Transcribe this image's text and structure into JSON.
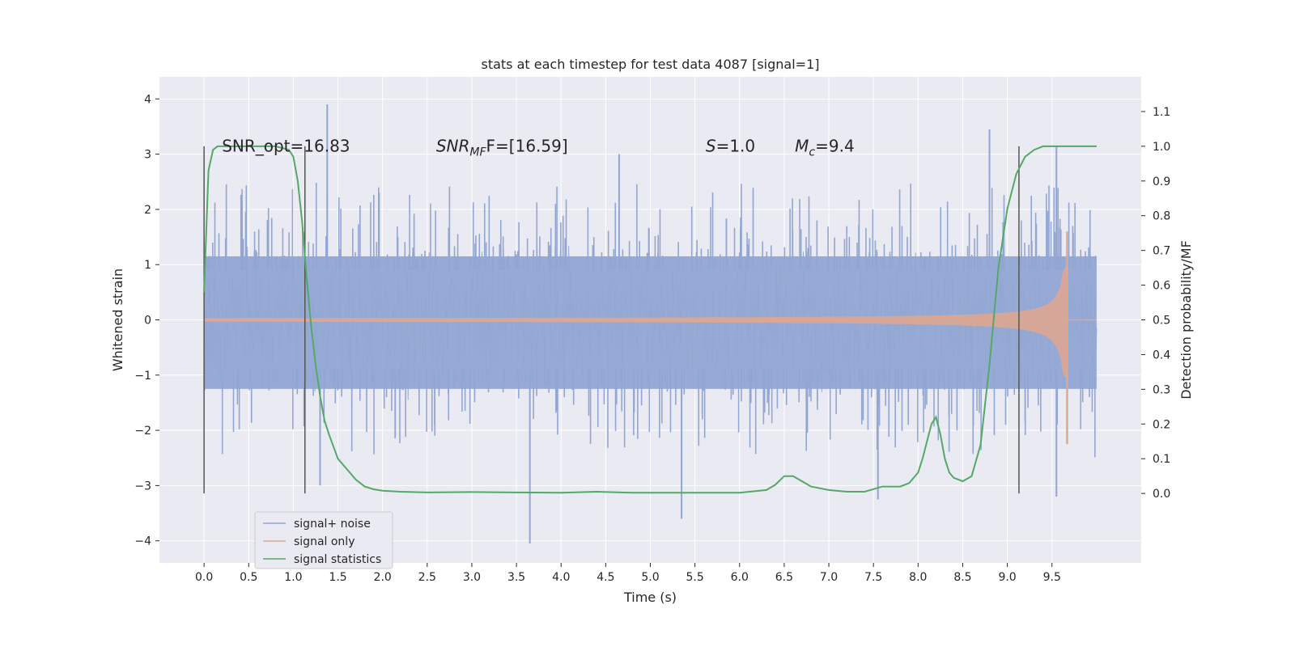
{
  "chart_data": {
    "type": "line",
    "title": "stats at each timestep for test data 4087 [signal=1]",
    "xlabel": "Time (s)",
    "ylabel": "Whitened strain",
    "ylabel_right": "Detection probability/MF",
    "xlim": [
      -0.5,
      10.5
    ],
    "ylim": [
      -4.4,
      4.4
    ],
    "ylim_right": [
      -0.2,
      1.2
    ],
    "xticks": [
      0.0,
      0.5,
      1.0,
      1.5,
      2.0,
      2.5,
      3.0,
      3.5,
      4.0,
      4.5,
      5.0,
      5.5,
      6.0,
      6.5,
      7.0,
      7.5,
      8.0,
      8.5,
      9.0,
      9.5
    ],
    "xtick_labels": [
      "0.0",
      "0.5",
      "1.0",
      "1.5",
      "2.0",
      "2.5",
      "3.0",
      "3.5",
      "4.0",
      "4.5",
      "5.0",
      "5.5",
      "6.0",
      "6.5",
      "7.0",
      "7.5",
      "8.0",
      "8.5",
      "9.0",
      "9.5"
    ],
    "yticks": [
      -4,
      -3,
      -2,
      -1,
      0,
      1,
      2,
      3,
      4
    ],
    "ytick_labels": [
      "−4",
      "−3",
      "−2",
      "−1",
      "0",
      "1",
      "2",
      "3",
      "4"
    ],
    "yticks_right": [
      0.0,
      0.1,
      0.2,
      0.3,
      0.4,
      0.5,
      0.6,
      0.7,
      0.8,
      0.9,
      1.0,
      1.1
    ],
    "ytick_labels_right": [
      "0.0",
      "0.1",
      "0.2",
      "0.3",
      "0.4",
      "0.5",
      "0.6",
      "0.7",
      "0.8",
      "0.9",
      "1.0",
      "1.1"
    ],
    "grid": true,
    "legend_position": "lower-left",
    "annotations": {
      "snr_opt": "SNR_opt=16.83",
      "snr_mf_name": "SNR",
      "snr_mf_sub": "MF",
      "snr_mf_value": "F=[16.59]",
      "s_name": "S",
      "s_value": "=1.0",
      "mc_name": "M",
      "mc_sub": "c",
      "mc_value": "=9.4"
    },
    "vertical_lines_x": [
      0.0,
      1.13,
      9.13
    ],
    "series": [
      {
        "name": "signal+ noise",
        "color": "#92a6d3",
        "axis": "left",
        "x_range": [
          0.0,
          10.0
        ],
        "envelope_peaks": [
          {
            "x": 1.38,
            "y": 3.9
          },
          {
            "x": 4.65,
            "y": 3.0
          },
          {
            "x": 8.8,
            "y": 3.45
          },
          {
            "x": 9.55,
            "y": 3.15
          },
          {
            "x": 3.65,
            "y": -4.05
          },
          {
            "x": 5.35,
            "y": -3.6
          },
          {
            "x": 7.55,
            "y": -3.25
          },
          {
            "x": 9.55,
            "y": -3.2
          },
          {
            "x": 1.3,
            "y": -3.0
          }
        ]
      },
      {
        "name": "signal only",
        "color": "#e1a78d",
        "axis": "left",
        "x_range": [
          0.0,
          9.67
        ],
        "final_max": 1.6,
        "final_min": -2.25
      },
      {
        "name": "signal statistics",
        "color": "#55a868",
        "axis": "right",
        "x": [
          0.0,
          0.05,
          0.1,
          0.15,
          0.2,
          0.3,
          0.5,
          0.8,
          0.95,
          1.0,
          1.05,
          1.1,
          1.15,
          1.2,
          1.25,
          1.3,
          1.35,
          1.4,
          1.45,
          1.5,
          1.6,
          1.7,
          1.8,
          1.9,
          2.0,
          2.2,
          2.5,
          3.0,
          3.5,
          4.0,
          4.4,
          4.8,
          5.2,
          5.6,
          6.0,
          6.3,
          6.4,
          6.5,
          6.6,
          6.7,
          6.8,
          7.0,
          7.2,
          7.4,
          7.6,
          7.8,
          7.9,
          8.0,
          8.05,
          8.1,
          8.15,
          8.2,
          8.25,
          8.3,
          8.35,
          8.4,
          8.5,
          8.6,
          8.7,
          8.8,
          8.9,
          9.0,
          9.1,
          9.2,
          9.3,
          9.4,
          9.5,
          9.6,
          9.7,
          10.0
        ],
        "y": [
          0.58,
          0.93,
          0.99,
          1.0,
          1.0,
          1.0,
          1.0,
          1.0,
          0.99,
          0.97,
          0.9,
          0.78,
          0.62,
          0.48,
          0.37,
          0.28,
          0.21,
          0.17,
          0.135,
          0.1,
          0.07,
          0.04,
          0.02,
          0.012,
          0.008,
          0.005,
          0.003,
          0.004,
          0.003,
          0.002,
          0.005,
          0.002,
          0.002,
          0.002,
          0.002,
          0.01,
          0.025,
          0.05,
          0.05,
          0.035,
          0.02,
          0.01,
          0.005,
          0.005,
          0.02,
          0.02,
          0.03,
          0.06,
          0.1,
          0.15,
          0.2,
          0.22,
          0.17,
          0.1,
          0.06,
          0.045,
          0.035,
          0.05,
          0.14,
          0.37,
          0.65,
          0.82,
          0.92,
          0.97,
          0.99,
          1.0,
          1.0,
          1.0,
          1.0,
          1.0
        ]
      }
    ]
  }
}
